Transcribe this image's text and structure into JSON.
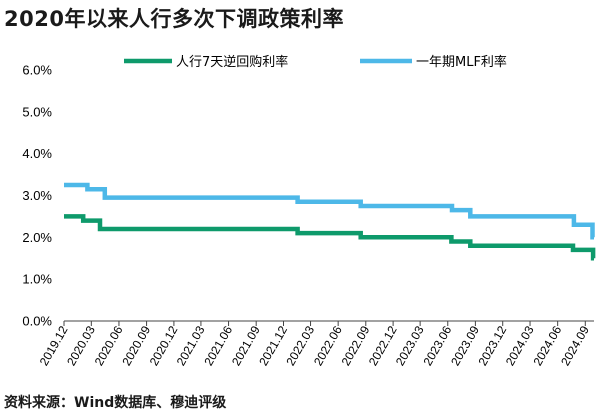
{
  "title": "2020年以来人行多次下调政策利率",
  "source": "资料来源：Wind数据库、穆迪评级",
  "chart_data": {
    "type": "line",
    "y_ticks": [
      "0.0%",
      "1.0%",
      "2.0%",
      "3.0%",
      "4.0%",
      "5.0%",
      "6.0%"
    ],
    "ylim": [
      0,
      6
    ],
    "x_ticks": [
      "2019.12",
      "2020.03",
      "2020.06",
      "2020.09",
      "2020.12",
      "2021.03",
      "2021.06",
      "2021.09",
      "2021.12",
      "2022.03",
      "2022.06",
      "2022.09",
      "2022.12",
      "2023.03",
      "2023.06",
      "2023.09",
      "2023.12",
      "2024.03",
      "2024.06",
      "2024.09"
    ],
    "legend_position": "top",
    "grid": false,
    "series": [
      {
        "name": "人行7天逆回购利率",
        "color": "#0e9a6b",
        "points": [
          {
            "x": "2019-12-01",
            "y": 2.5
          },
          {
            "x": "2020-02-03",
            "y": 2.4
          },
          {
            "x": "2020-03-30",
            "y": 2.2
          },
          {
            "x": "2022-01-17",
            "y": 2.1
          },
          {
            "x": "2022-08-15",
            "y": 2.0
          },
          {
            "x": "2023-06-13",
            "y": 1.9
          },
          {
            "x": "2023-08-15",
            "y": 1.8
          },
          {
            "x": "2024-07-22",
            "y": 1.7
          },
          {
            "x": "2024-09-27",
            "y": 1.5
          },
          {
            "x": "2024-09-30",
            "y": 1.5
          }
        ]
      },
      {
        "name": "一年期MLF利率",
        "color": "#4db8e8",
        "points": [
          {
            "x": "2019-12-01",
            "y": 3.25
          },
          {
            "x": "2020-02-17",
            "y": 3.15
          },
          {
            "x": "2020-04-15",
            "y": 2.95
          },
          {
            "x": "2022-01-17",
            "y": 2.85
          },
          {
            "x": "2022-08-15",
            "y": 2.75
          },
          {
            "x": "2023-06-15",
            "y": 2.65
          },
          {
            "x": "2023-08-15",
            "y": 2.5
          },
          {
            "x": "2024-07-25",
            "y": 2.3
          },
          {
            "x": "2024-09-25",
            "y": 2.0
          },
          {
            "x": "2024-09-30",
            "y": 2.0
          }
        ]
      }
    ]
  }
}
